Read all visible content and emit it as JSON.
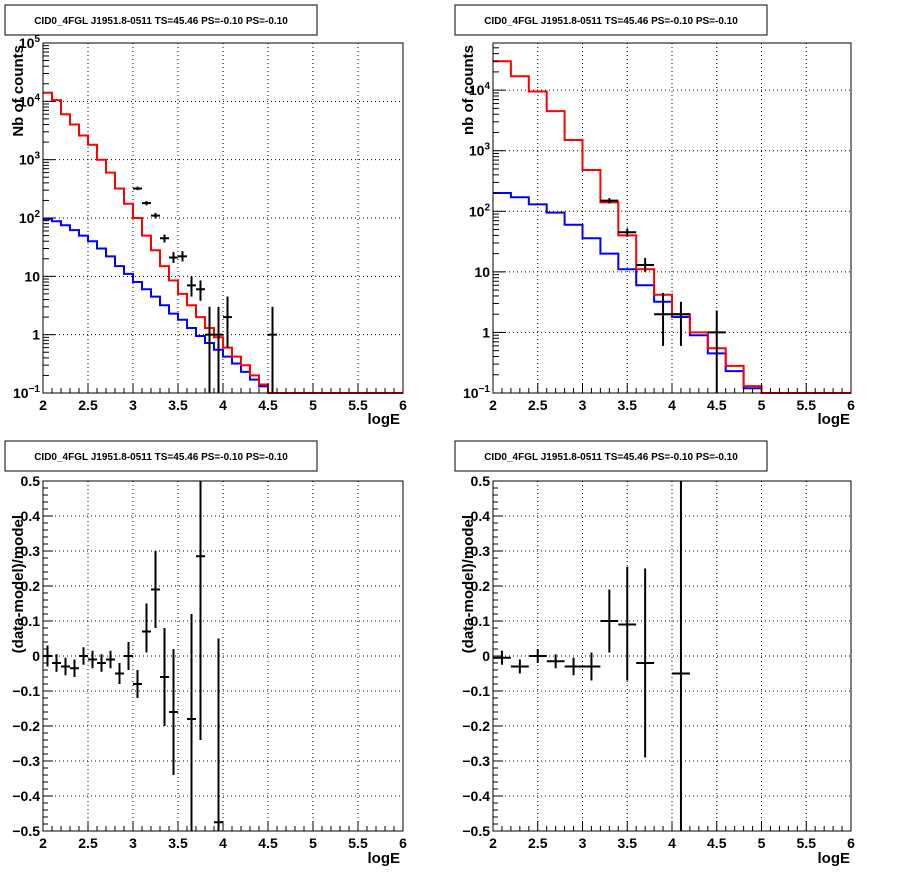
{
  "colors": {
    "data": "#000000",
    "total_model": "#ff0000",
    "source_model": "#0000ff",
    "grid": "#000000"
  },
  "chart_data": [
    {
      "type": "line",
      "title": "CID0_4FGL J1951.8-0511 TS=45.46 PS=-0.10 PS=-0.10",
      "xlabel": "logE",
      "ylabel": "Nb of counts",
      "xlim": [
        2,
        6
      ],
      "ylim": [
        0.1,
        100000
      ],
      "yscale": "log",
      "grid": true,
      "xticks": [
        "2",
        "2.5",
        "3",
        "3.5",
        "4",
        "4.5",
        "5",
        "5.5",
        "6"
      ],
      "yticks": [
        {
          "value": 0.1,
          "base": "10",
          "exp": "−1"
        },
        {
          "value": 1,
          "label": "1"
        },
        {
          "value": 10,
          "label": "10"
        },
        {
          "value": 100,
          "base": "10",
          "exp": "2"
        },
        {
          "value": 1000,
          "base": "10",
          "exp": "3"
        },
        {
          "value": 10000,
          "base": "10",
          "exp": "4"
        },
        {
          "value": 100000,
          "base": "10",
          "exp": "5"
        }
      ],
      "hist_edges": [
        2.0,
        2.1,
        2.2,
        2.3,
        2.4,
        2.5,
        2.6,
        2.7,
        2.8,
        2.9,
        3.0,
        3.1,
        3.2,
        3.3,
        3.4,
        3.5,
        3.6,
        3.7,
        3.8,
        3.9,
        4.0,
        4.1,
        4.2,
        4.3,
        4.4,
        4.5,
        4.6,
        4.7,
        4.8,
        4.9,
        5.0,
        5.1,
        5.2,
        5.3,
        5.4,
        5.5,
        5.6,
        5.7,
        5.8,
        5.9,
        6.0
      ],
      "series": [
        {
          "name": "total_model",
          "values": [
            14000,
            10500,
            6000,
            4000,
            2600,
            1800,
            1000,
            600,
            320,
            175,
            100,
            50,
            28,
            15,
            8.5,
            5,
            3.2,
            2.0,
            1.3,
            0.9,
            0.6,
            0.42,
            0.3,
            0.2,
            0.14,
            0.1,
            0.1,
            0.1,
            0.1,
            0.1,
            0.1,
            0.1,
            0.1,
            0.1,
            0.1,
            0.1,
            0.1,
            0.1,
            0.1,
            0.1
          ]
        },
        {
          "name": "source_model",
          "values": [
            95,
            88,
            75,
            62,
            50,
            40,
            30,
            22,
            15,
            11,
            8,
            6,
            4.5,
            3.2,
            2.3,
            1.8,
            1.3,
            0.95,
            0.72,
            0.55,
            0.42,
            0.32,
            0.23,
            0.17,
            0.13,
            0.1,
            0.1,
            0.1,
            0.1,
            0.1,
            0.1,
            0.1,
            0.1,
            0.1,
            0.1,
            0.1,
            0.1,
            0.1,
            0.1,
            0.1
          ]
        }
      ],
      "points": [
        {
          "x": 3.05,
          "y": 320,
          "xerr": 0.05,
          "ylo": 300,
          "yhi": 345
        },
        {
          "x": 3.15,
          "y": 180,
          "xerr": 0.05,
          "ylo": 165,
          "yhi": 195
        },
        {
          "x": 3.25,
          "y": 110,
          "xerr": 0.05,
          "ylo": 98,
          "yhi": 122
        },
        {
          "x": 3.35,
          "y": 45,
          "xerr": 0.05,
          "ylo": 38,
          "yhi": 52
        },
        {
          "x": 3.45,
          "y": 21,
          "xerr": 0.05,
          "ylo": 17,
          "yhi": 26
        },
        {
          "x": 3.55,
          "y": 22,
          "xerr": 0.05,
          "ylo": 18,
          "yhi": 27
        },
        {
          "x": 3.65,
          "y": 7,
          "xerr": 0.05,
          "ylo": 4.5,
          "yhi": 10
        },
        {
          "x": 3.75,
          "y": 6,
          "xerr": 0.05,
          "ylo": 3.8,
          "yhi": 8.5
        },
        {
          "x": 3.85,
          "y": 1,
          "xerr": 0.05,
          "ylo": 0.1,
          "yhi": 3
        },
        {
          "x": 3.95,
          "y": 1,
          "xerr": 0.05,
          "ylo": 0.1,
          "yhi": 3
        },
        {
          "x": 4.05,
          "y": 2,
          "xerr": 0.05,
          "ylo": 0.6,
          "yhi": 4.5
        },
        {
          "x": 4.55,
          "y": 1,
          "xerr": 0.05,
          "ylo": 0.1,
          "yhi": 3
        }
      ]
    },
    {
      "type": "line",
      "title": "CID0_4FGL J1951.8-0511 TS=45.46 PS=-0.10 PS=-0.10",
      "xlabel": "logE",
      "ylabel": "nb of counts",
      "xlim": [
        2,
        6
      ],
      "ylim": [
        0.1,
        60000
      ],
      "yscale": "log",
      "grid": true,
      "xticks": [
        "2",
        "2.5",
        "3",
        "3.5",
        "4",
        "4.5",
        "5",
        "5.5",
        "6"
      ],
      "yticks": [
        {
          "value": 0.1,
          "base": "10",
          "exp": "−1"
        },
        {
          "value": 1,
          "label": "1"
        },
        {
          "value": 10,
          "label": "10"
        },
        {
          "value": 100,
          "base": "10",
          "exp": "2"
        },
        {
          "value": 1000,
          "base": "10",
          "exp": "3"
        },
        {
          "value": 10000,
          "base": "10",
          "exp": "4"
        }
      ],
      "hist_edges": [
        2.0,
        2.2,
        2.4,
        2.6,
        2.8,
        3.0,
        3.2,
        3.4,
        3.6,
        3.8,
        4.0,
        4.2,
        4.4,
        4.6,
        4.8,
        5.0,
        5.2,
        5.4,
        5.6,
        5.8,
        6.0
      ],
      "series": [
        {
          "name": "total_model",
          "values": [
            30000,
            17000,
            9500,
            4500,
            1500,
            480,
            140,
            40,
            11,
            4.2,
            2.0,
            1.0,
            0.55,
            0.28,
            0.13,
            0.1,
            0.1,
            0.1,
            0.1,
            0.1
          ]
        },
        {
          "name": "source_model",
          "values": [
            200,
            170,
            130,
            95,
            60,
            36,
            20,
            11,
            6,
            3.2,
            1.8,
            0.9,
            0.45,
            0.23,
            0.12,
            0.1,
            0.1,
            0.1,
            0.1,
            0.1
          ]
        }
      ],
      "points": [
        {
          "x": 3.3,
          "y": 150,
          "xerr": 0.1,
          "ylo": 135,
          "yhi": 165
        },
        {
          "x": 3.5,
          "y": 45,
          "xerr": 0.1,
          "ylo": 38,
          "yhi": 52
        },
        {
          "x": 3.7,
          "y": 13,
          "xerr": 0.1,
          "ylo": 10,
          "yhi": 17
        },
        {
          "x": 3.9,
          "y": 2,
          "xerr": 0.1,
          "ylo": 0.6,
          "yhi": 4.5
        },
        {
          "x": 4.1,
          "y": 2,
          "xerr": 0.1,
          "ylo": 0.6,
          "yhi": 3.2
        },
        {
          "x": 4.5,
          "y": 1,
          "xerr": 0.1,
          "ylo": 0.1,
          "yhi": 2.3
        }
      ]
    },
    {
      "type": "scatter",
      "title": "CID0_4FGL J1951.8-0511 TS=45.46 PS=-0.10 PS=-0.10",
      "xlabel": "logE",
      "ylabel": "(data-model)/model",
      "xlim": [
        2,
        6
      ],
      "ylim": [
        -0.5,
        0.5
      ],
      "yscale": "linear",
      "grid": true,
      "xticks": [
        "2",
        "2.5",
        "3",
        "3.5",
        "4",
        "4.5",
        "5",
        "5.5",
        "6"
      ],
      "yticks": [
        {
          "value": -0.5,
          "label": "−0.5"
        },
        {
          "value": -0.4,
          "label": "−0.4"
        },
        {
          "value": -0.3,
          "label": "−0.3"
        },
        {
          "value": -0.2,
          "label": "−0.2"
        },
        {
          "value": -0.1,
          "label": "−0.1"
        },
        {
          "value": 0,
          "label": "0"
        },
        {
          "value": 0.1,
          "label": "0.1"
        },
        {
          "value": 0.2,
          "label": "0.2"
        },
        {
          "value": 0.3,
          "label": "0.3"
        },
        {
          "value": 0.4,
          "label": "0.4"
        },
        {
          "value": 0.5,
          "label": "0.5"
        }
      ],
      "points": [
        {
          "x": 2.05,
          "y": 0.0,
          "xerr": 0.05,
          "ylo": -0.03,
          "yhi": 0.03
        },
        {
          "x": 2.15,
          "y": -0.02,
          "xerr": 0.05,
          "ylo": -0.045,
          "yhi": 0.005
        },
        {
          "x": 2.25,
          "y": -0.03,
          "xerr": 0.05,
          "ylo": -0.055,
          "yhi": -0.005
        },
        {
          "x": 2.35,
          "y": -0.035,
          "xerr": 0.05,
          "ylo": -0.06,
          "yhi": -0.01
        },
        {
          "x": 2.45,
          "y": 0.0,
          "xerr": 0.05,
          "ylo": -0.025,
          "yhi": 0.025
        },
        {
          "x": 2.55,
          "y": -0.01,
          "xerr": 0.05,
          "ylo": -0.035,
          "yhi": 0.015
        },
        {
          "x": 2.65,
          "y": -0.02,
          "xerr": 0.05,
          "ylo": -0.045,
          "yhi": 0.005
        },
        {
          "x": 2.75,
          "y": -0.01,
          "xerr": 0.05,
          "ylo": -0.035,
          "yhi": 0.015
        },
        {
          "x": 2.85,
          "y": -0.05,
          "xerr": 0.05,
          "ylo": -0.08,
          "yhi": -0.02
        },
        {
          "x": 2.95,
          "y": 0.0,
          "xerr": 0.05,
          "ylo": -0.04,
          "yhi": 0.04
        },
        {
          "x": 3.05,
          "y": -0.08,
          "xerr": 0.05,
          "ylo": -0.12,
          "yhi": -0.04
        },
        {
          "x": 3.15,
          "y": 0.07,
          "xerr": 0.05,
          "ylo": 0.01,
          "yhi": 0.15
        },
        {
          "x": 3.25,
          "y": 0.19,
          "xerr": 0.05,
          "ylo": 0.08,
          "yhi": 0.3
        },
        {
          "x": 3.35,
          "y": -0.06,
          "xerr": 0.05,
          "ylo": -0.2,
          "yhi": 0.08
        },
        {
          "x": 3.45,
          "y": -0.16,
          "xerr": 0.05,
          "ylo": -0.34,
          "yhi": 0.02
        },
        {
          "x": 3.65,
          "y": -0.18,
          "xerr": 0.05,
          "ylo": -0.5,
          "yhi": 0.12
        },
        {
          "x": 3.75,
          "y": 0.285,
          "xerr": 0.05,
          "ylo": -0.24,
          "yhi": 0.5
        },
        {
          "x": 3.95,
          "y": -0.475,
          "xerr": 0.05,
          "ylo": -0.5,
          "yhi": 0.05
        }
      ]
    },
    {
      "type": "scatter",
      "title": "CID0_4FGL J1951.8-0511 TS=45.46 PS=-0.10 PS=-0.10",
      "xlabel": "logE",
      "ylabel": "(data-model)/model",
      "xlim": [
        2,
        6
      ],
      "ylim": [
        -0.5,
        0.5
      ],
      "yscale": "linear",
      "grid": true,
      "xticks": [
        "2",
        "2.5",
        "3",
        "3.5",
        "4",
        "4.5",
        "5",
        "5.5",
        "6"
      ],
      "yticks": [
        {
          "value": -0.5,
          "label": "−0.5"
        },
        {
          "value": -0.4,
          "label": "−0.4"
        },
        {
          "value": -0.3,
          "label": "−0.3"
        },
        {
          "value": -0.2,
          "label": "−0.2"
        },
        {
          "value": -0.1,
          "label": "−0.1"
        },
        {
          "value": 0,
          "label": "0"
        },
        {
          "value": 0.1,
          "label": "0.1"
        },
        {
          "value": 0.2,
          "label": "0.2"
        },
        {
          "value": 0.3,
          "label": "0.3"
        },
        {
          "value": 0.4,
          "label": "0.4"
        },
        {
          "value": 0.5,
          "label": "0.5"
        }
      ],
      "points": [
        {
          "x": 2.1,
          "y": -0.005,
          "xerr": 0.1,
          "ylo": -0.025,
          "yhi": 0.015
        },
        {
          "x": 2.3,
          "y": -0.03,
          "xerr": 0.1,
          "ylo": -0.05,
          "yhi": -0.01
        },
        {
          "x": 2.5,
          "y": 0.0,
          "xerr": 0.1,
          "ylo": -0.02,
          "yhi": 0.02
        },
        {
          "x": 2.7,
          "y": -0.015,
          "xerr": 0.1,
          "ylo": -0.035,
          "yhi": 0.005
        },
        {
          "x": 2.9,
          "y": -0.03,
          "xerr": 0.1,
          "ylo": -0.055,
          "yhi": -0.005
        },
        {
          "x": 3.1,
          "y": -0.03,
          "xerr": 0.1,
          "ylo": -0.07,
          "yhi": 0.01
        },
        {
          "x": 3.3,
          "y": 0.1,
          "xerr": 0.1,
          "ylo": 0.01,
          "yhi": 0.19
        },
        {
          "x": 3.5,
          "y": 0.09,
          "xerr": 0.1,
          "ylo": -0.07,
          "yhi": 0.255
        },
        {
          "x": 3.7,
          "y": -0.02,
          "xerr": 0.1,
          "ylo": -0.29,
          "yhi": 0.25
        },
        {
          "x": 4.1,
          "y": -0.05,
          "xerr": 0.1,
          "ylo": -0.5,
          "yhi": 0.5
        }
      ]
    }
  ]
}
